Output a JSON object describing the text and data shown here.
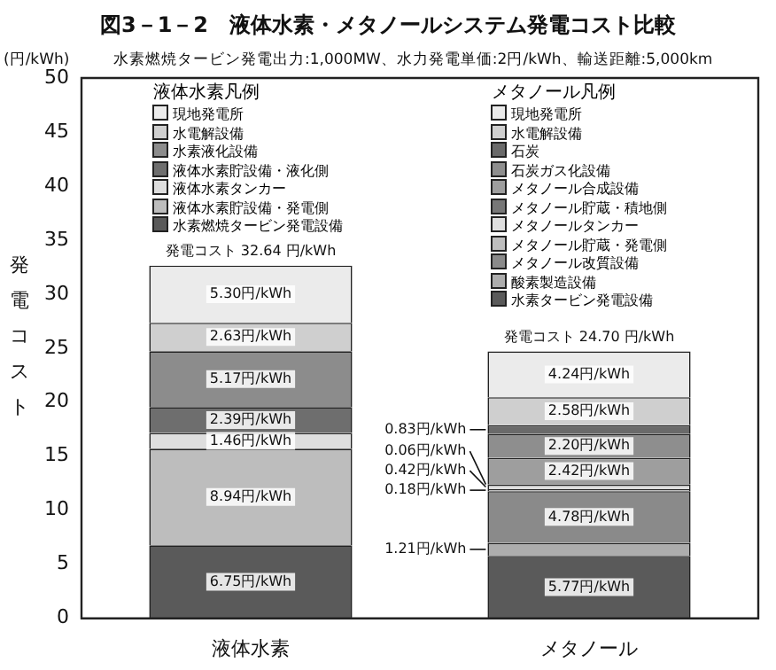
{
  "chart_data": {
    "type": "bar",
    "stacked": true,
    "title": "図3－1－2　液体水素・メタノールシステム発電コスト比較",
    "subtitle": "水素燃焼タービン発電出力:1,000MW、水力発電単価:2円/kWh、輸送距離:5,000km",
    "ylabel": "発電コスト",
    "annotations": [
      "液体水素凡例",
      "メタノール凡例",
      "(円/kWh)"
    ],
    "categories": [
      "液体水素",
      "メタノール"
    ],
    "ylim": [
      0,
      50
    ],
    "yticks": [
      0,
      5,
      10,
      15,
      20,
      25,
      30,
      35,
      40,
      45,
      50
    ],
    "grid": false,
    "legend": "top",
    "data_labels": false,
    "totals": [
      "発電コスト 32.64 円/kWh",
      "発電コスト 24.70 円/kWh"
    ],
    "series": [
      {
        "name": "水素燃焼タービン発電設備",
        "color": "#5a5a5a",
        "values": [
          6.75,
          null
        ],
        "value_labels": [
          "6.75円/kWh",
          null
        ]
      },
      {
        "name": "液体水素貯設備・発電側",
        "color": "#bdbdbd",
        "values": [
          8.94,
          null
        ],
        "value_labels": [
          "8.94円/kWh",
          null
        ]
      },
      {
        "name": "液体水素タンカー",
        "color": "#dedede",
        "values": [
          1.46,
          null
        ],
        "value_labels": [
          "1.46円/kWh",
          null
        ]
      },
      {
        "name": "液体水素貯設備・液化側",
        "color": "#6e6e6e",
        "values": [
          2.39,
          null
        ],
        "value_labels": [
          "2.39円/kWh",
          null
        ]
      },
      {
        "name": "水素液化設備",
        "color": "#8c8c8c",
        "values": [
          5.17,
          null
        ],
        "value_labels": [
          "5.17円/kWh",
          null
        ]
      },
      {
        "name": "水電解設備",
        "color": "#cfcfcf",
        "values": [
          2.63,
          null
        ],
        "value_labels": [
          "2.63円/kWh",
          null
        ]
      },
      {
        "name": "現地発電所",
        "color": "#ebebeb",
        "values": [
          5.3,
          null
        ],
        "value_labels": [
          "5.30円/kWh",
          null
        ]
      },
      {
        "name": "水素タービン発電設備",
        "color": "#5a5a5a",
        "values": [
          null,
          5.77
        ],
        "value_labels": [
          null,
          "5.77円/kWh"
        ]
      },
      {
        "name": "酸素製造設備",
        "color": "#adadad",
        "values": [
          null,
          1.21
        ],
        "value_labels": [
          null,
          "1.21円/kWh"
        ]
      },
      {
        "name": "メタノール改質設備",
        "color": "#8a8a8a",
        "values": [
          null,
          4.78
        ],
        "value_labels": [
          null,
          "4.78円/kWh"
        ]
      },
      {
        "name": "メタノール貯蔵・発電側",
        "color": "#bdbdbd",
        "values": [
          null,
          0.18
        ],
        "value_labels": [
          null,
          "0.18円/kWh"
        ]
      },
      {
        "name": "メタノールタンカー",
        "color": "#dedede",
        "values": [
          null,
          0.42
        ],
        "value_labels": [
          null,
          "0.42円/kWh"
        ]
      },
      {
        "name": "メタノール貯蔵・積地側",
        "color": "#777777",
        "values": [
          null,
          0.06
        ],
        "value_labels": [
          null,
          "0.06円/kWh"
        ]
      },
      {
        "name": "メタノール合成設備",
        "color": "#9e9e9e",
        "values": [
          null,
          2.42
        ],
        "value_labels": [
          null,
          "2.42円/kWh"
        ]
      },
      {
        "name": "石炭ガス化設備",
        "color": "#8e8e8e",
        "values": [
          null,
          2.2
        ],
        "value_labels": [
          null,
          "2.20円/kWh"
        ]
      },
      {
        "name": "石炭",
        "color": "#6a6a6a",
        "values": [
          null,
          0.83
        ],
        "value_labels": [
          null,
          "0.83円/kWh"
        ]
      },
      {
        "name": "水電解設備",
        "color": "#cfcfcf",
        "values": [
          null,
          2.58
        ],
        "value_labels": [
          null,
          "2.58円/kWh"
        ]
      },
      {
        "name": "現地発電所",
        "color": "#ebebeb",
        "values": [
          null,
          4.24
        ],
        "value_labels": [
          null,
          "4.24円/kWh"
        ]
      }
    ]
  }
}
